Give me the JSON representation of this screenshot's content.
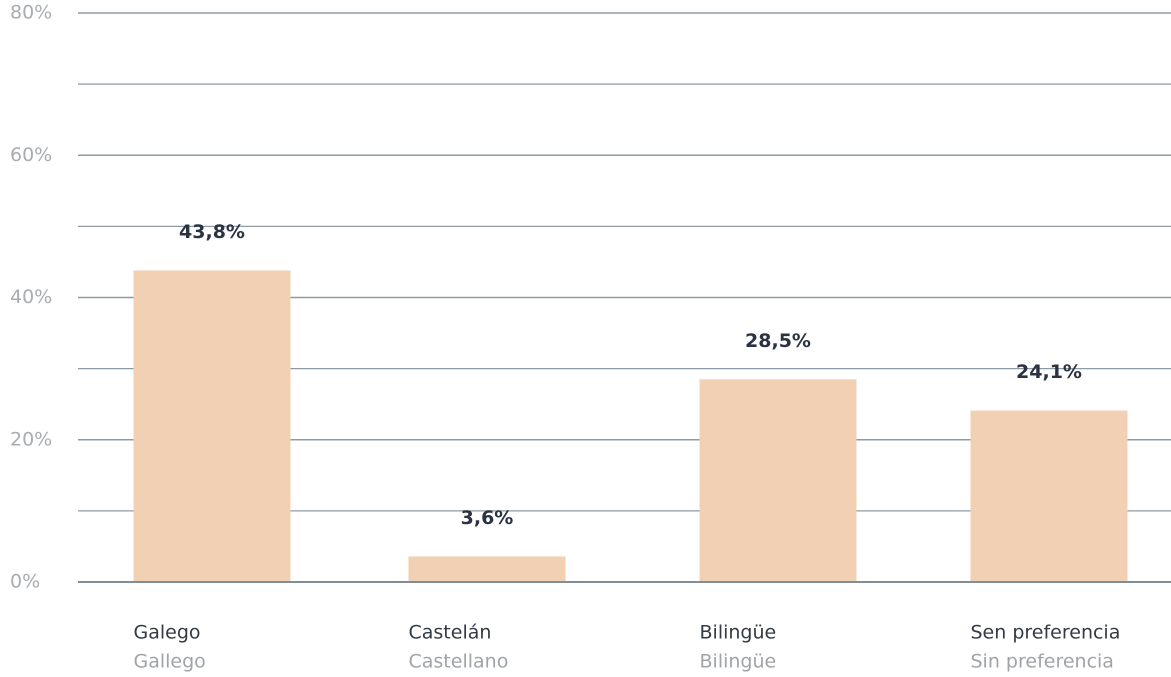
{
  "chart_data": {
    "type": "bar",
    "categories": [
      "Galego",
      "Castelán",
      "Bilingüe",
      "Sen preferencia"
    ],
    "categories_secondary": [
      "Gallego",
      "Castellano",
      "Bilingüe",
      "Sin preferencia"
    ],
    "values": [
      43.8,
      3.6,
      28.5,
      24.1
    ],
    "value_labels": [
      "43,8%",
      "3,6%",
      "28,5%",
      "24,1%"
    ],
    "color": "#f1d0b4",
    "ylim": [
      0,
      80
    ],
    "yticks": [
      {
        "value": 0,
        "label": "0%"
      },
      {
        "value": 20,
        "label": "20%"
      },
      {
        "value": 40,
        "label": "40%"
      },
      {
        "value": 60,
        "label": "60%"
      },
      {
        "value": 80,
        "label": "80%"
      }
    ],
    "minor_yticks": [
      10,
      30,
      50,
      70
    ],
    "grid": true
  }
}
